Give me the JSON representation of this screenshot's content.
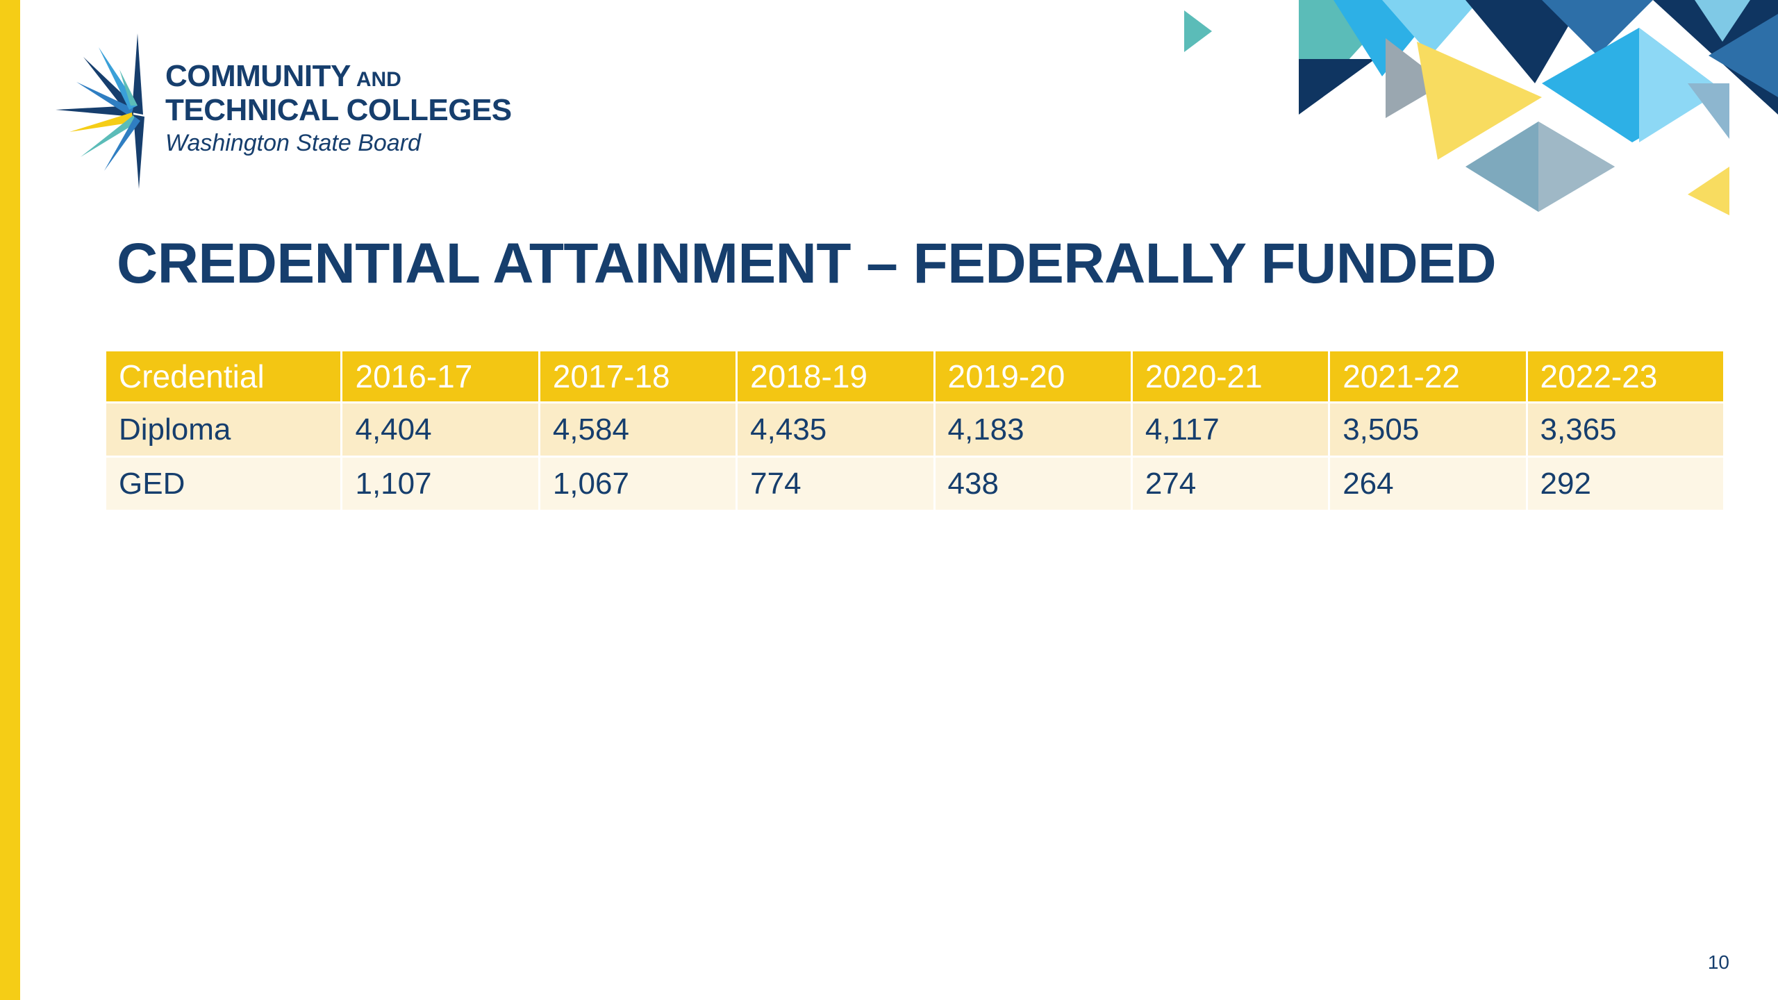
{
  "logo": {
    "line1": "COMMUNITY",
    "line1_and": "AND",
    "line2": "TECHNICAL COLLEGES",
    "line3": "Washington State Board"
  },
  "title": "CREDENTIAL ATTAINMENT – FEDERALLY FUNDED",
  "table": {
    "headers": [
      "Credential",
      "2016-17",
      "2017-18",
      "2018-19",
      "2019-20",
      "2020-21",
      "2021-22",
      "2022-23"
    ],
    "rows": [
      [
        "Diploma",
        "4,404",
        "4,584",
        "4,435",
        "4,183",
        "4,117",
        "3,505",
        "3,365"
      ],
      [
        "GED",
        "1,107",
        "1,067",
        "774",
        "438",
        "274",
        "264",
        "292"
      ]
    ]
  },
  "page_number": "10",
  "colors": {
    "accent_yellow": "#f5cd16",
    "header_yellow": "#f3c613",
    "navy": "#163e6d",
    "row_odd": "#fbecc7",
    "row_even": "#fdf6e5"
  }
}
